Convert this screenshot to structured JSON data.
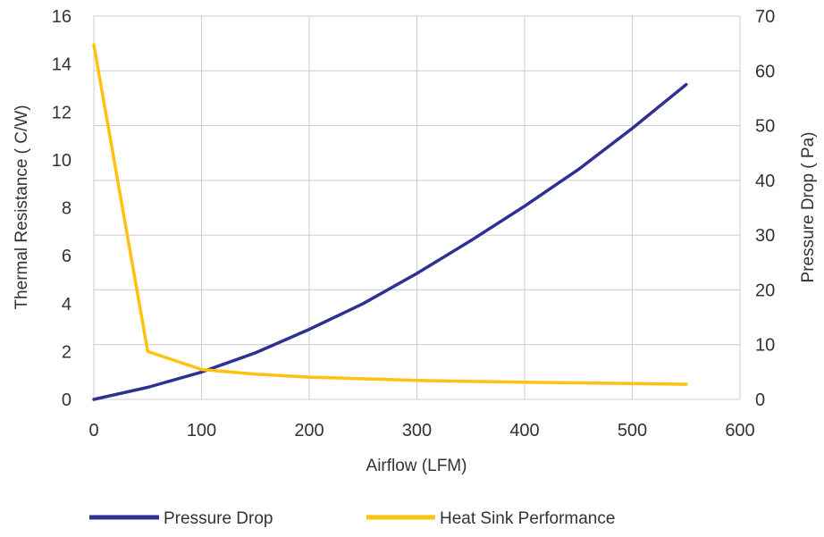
{
  "chart_data": {
    "type": "line",
    "xlabel": "Airflow (LFM)",
    "ylabel_left": "Thermal Resistance ( C/W)",
    "ylabel_right": "Pressure Drop ( Pa)",
    "xlim": [
      0,
      600
    ],
    "ylim_left": [
      0,
      16
    ],
    "ylim_right": [
      0,
      70
    ],
    "x_ticks": [
      "0",
      "100",
      "200",
      "300",
      "400",
      "500",
      "600"
    ],
    "y_left_ticks": [
      "0",
      "2",
      "4",
      "6",
      "8",
      "10",
      "12",
      "14",
      "16"
    ],
    "y_right_ticks": [
      "0",
      "10",
      "20",
      "30",
      "40",
      "50",
      "60",
      "70"
    ],
    "grid": true,
    "legend_position": "bottom",
    "series": [
      {
        "name": "Pressure Drop",
        "axis": "right",
        "color": "#2e3192",
        "x": [
          0,
          50,
          100,
          150,
          200,
          250,
          300,
          350,
          400,
          450,
          500,
          550
        ],
        "y": [
          0,
          2.2,
          5,
          8.5,
          12.8,
          17.5,
          23,
          29,
          35.3,
          42,
          49.5,
          57.5
        ]
      },
      {
        "name": "Heat Sink Performance",
        "axis": "left",
        "color": "#ffc20e",
        "x": [
          0,
          50,
          100,
          150,
          200,
          250,
          300,
          350,
          400,
          450,
          500,
          550
        ],
        "y": [
          14.8,
          2.0,
          1.25,
          1.05,
          0.93,
          0.86,
          0.79,
          0.75,
          0.72,
          0.69,
          0.66,
          0.63
        ]
      }
    ]
  }
}
